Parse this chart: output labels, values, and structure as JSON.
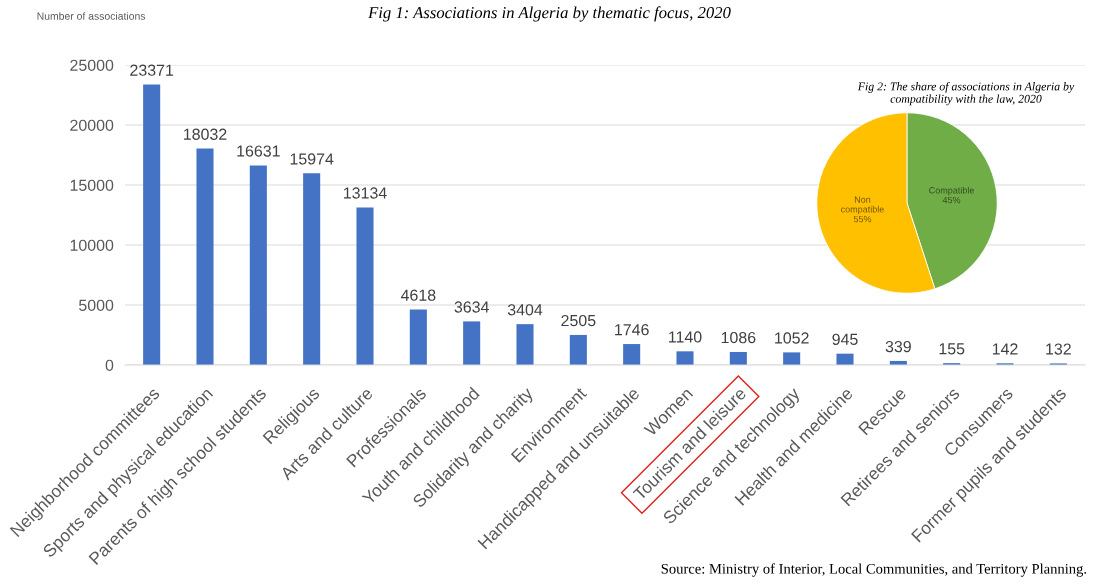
{
  "chart_data": [
    {
      "type": "bar",
      "title": "Fig 1: Associations in Algeria by thematic focus, 2020",
      "ylabel": "Number of associations",
      "categories": [
        "Neighborhood committees",
        "Sports and physical education",
        "Parents of high school students",
        "Religious",
        "Arts and culture",
        "Professionals",
        "Youth and childhood",
        "Solidarity and charity",
        "Environment",
        "Handicapped and unsuitable",
        "Women",
        "Tourism and leisure",
        "Science and technology",
        "Health and medicine",
        "Rescue",
        "Retirees and seniors",
        "Consumers",
        "Former pupils and students"
      ],
      "values": [
        23371,
        18032,
        16631,
        15974,
        13134,
        4618,
        3634,
        3404,
        2505,
        1746,
        1140,
        1086,
        1052,
        945,
        339,
        155,
        142,
        132
      ],
      "color": "#4472c4",
      "ylim": [
        0,
        25000
      ],
      "yticks": [
        0,
        5000,
        10000,
        15000,
        20000,
        25000
      ],
      "grid": "y",
      "data_labels": true,
      "annotations": [
        "Source: Ministry of Interior, Local Communities, and Territory Planning."
      ]
    },
    {
      "type": "pie",
      "title": "Fig 2: The share of associations in Algeria by compatibility with the law, 2020",
      "categories": [
        "Compatible",
        "Non compatible"
      ],
      "values": [
        45,
        55
      ],
      "colors": [
        "#70ad47",
        "#ffc000"
      ],
      "value_labels": [
        "45%",
        "55%"
      ]
    }
  ]
}
